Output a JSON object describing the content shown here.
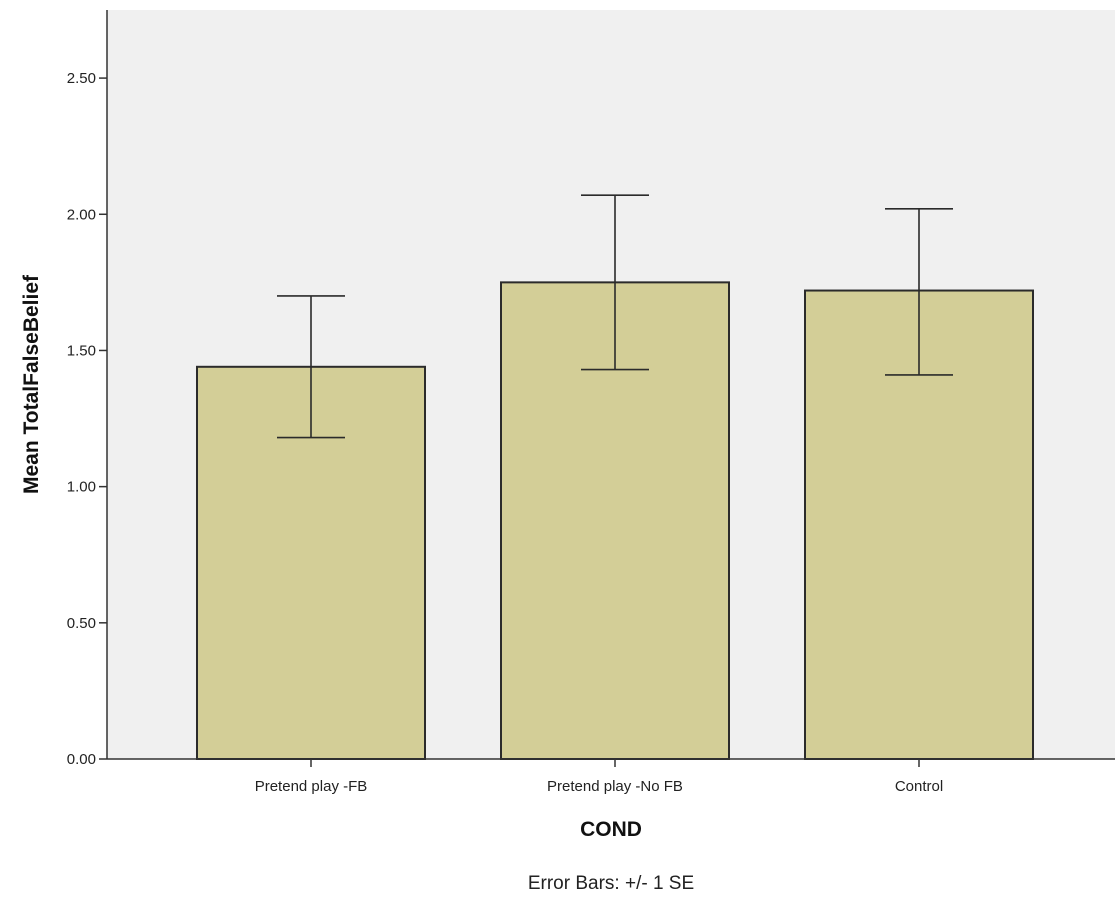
{
  "chart_data": {
    "type": "bar",
    "categories": [
      "Pretend play -FB",
      "Pretend play -No FB",
      "Control"
    ],
    "values": [
      1.44,
      1.75,
      1.72
    ],
    "error_low": [
      1.18,
      1.43,
      1.41
    ],
    "error_high": [
      1.7,
      2.07,
      2.02
    ],
    "xlabel": "COND",
    "ylabel": "Mean TotalFalseBelief",
    "ylim": [
      0,
      2.75
    ],
    "yticks": [
      "0.00",
      "0.50",
      "1.00",
      "1.50",
      "2.00",
      "2.50"
    ],
    "ytick_values": [
      0,
      0.5,
      1.0,
      1.5,
      2.0,
      2.5
    ],
    "footnote": "Error Bars: +/- 1 SE",
    "grid": false,
    "colors": {
      "plot_background": "#f0f0f0",
      "bar_fill": "#d3ce97",
      "bar_stroke": "#2b2b2b"
    }
  }
}
